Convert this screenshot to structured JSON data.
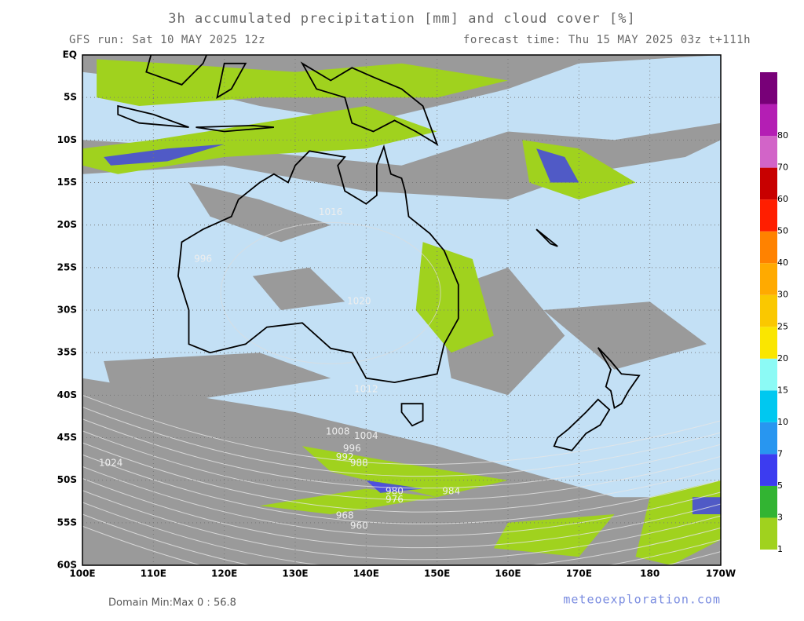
{
  "header": {
    "title": "3h accumulated precipitation [mm] and cloud cover [%]",
    "run": "GFS run: Sat 10 MAY 2025 12z",
    "forecast": "forecast time: Thu 15 MAY 2025 03z  t+111h"
  },
  "map": {
    "lat_labels": [
      "EQ",
      "5S",
      "10S",
      "15S",
      "20S",
      "25S",
      "30S",
      "35S",
      "40S",
      "45S",
      "50S",
      "55S",
      "60S"
    ],
    "lon_labels": [
      "100E",
      "110E",
      "120E",
      "130E",
      "140E",
      "150E",
      "160E",
      "170E",
      "180",
      "170W"
    ],
    "isobar_labels": [
      "1008",
      "1004",
      "996",
      "992",
      "988",
      "980",
      "976",
      "968",
      "960",
      "984",
      "1024",
      "1020",
      "1016",
      "1012",
      "996"
    ]
  },
  "legend": {
    "labels": [
      "1",
      "3",
      "5",
      "7",
      "10",
      "15",
      "20",
      "25",
      "30",
      "40",
      "50",
      "60",
      "70",
      "80"
    ],
    "colors": [
      "#a0d21e",
      "#32b432",
      "#3c3cf0",
      "#2896f0",
      "#00c8f0",
      "#8cfaf5",
      "#fae600",
      "#fac800",
      "#ffaa00",
      "#ff8200",
      "#ff1e00",
      "#c80000",
      "#d264c8",
      "#b41eb4",
      "#780078"
    ]
  },
  "footer": {
    "domain": "Domain Min:Max 0 : 56.8",
    "site": "meteoexploration.com"
  }
}
